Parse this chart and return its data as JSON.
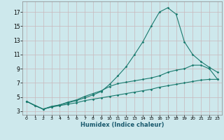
{
  "xlabel": "Humidex (Indice chaleur)",
  "bg_color": "#cde8ec",
  "grid_color_major": "#b8d4d8",
  "grid_color_minor": "#d4e8ec",
  "line_color": "#1a7a6e",
  "xlim": [
    -0.5,
    23.5
  ],
  "ylim": [
    2.5,
    18.5
  ],
  "yticks": [
    3,
    5,
    7,
    9,
    11,
    13,
    15,
    17
  ],
  "xticks": [
    0,
    1,
    2,
    3,
    4,
    5,
    6,
    7,
    8,
    9,
    10,
    11,
    12,
    13,
    14,
    15,
    16,
    17,
    18,
    19,
    20,
    21,
    22,
    23
  ],
  "line1_x": [
    0,
    1,
    2,
    3,
    4,
    5,
    6,
    7,
    8,
    9,
    10,
    11,
    12,
    13,
    14,
    15,
    16,
    17,
    18,
    19,
    20,
    21,
    22,
    23
  ],
  "line1_y": [
    4.4,
    3.8,
    3.3,
    3.6,
    3.9,
    4.2,
    4.5,
    4.9,
    5.3,
    5.8,
    6.8,
    8.0,
    9.3,
    11.0,
    12.8,
    15.0,
    17.0,
    17.6,
    16.7,
    12.8,
    11.0,
    10.0,
    9.2,
    8.5
  ],
  "line2_x": [
    0,
    2,
    3,
    4,
    5,
    6,
    7,
    8,
    9,
    10,
    11,
    12,
    13,
    14,
    15,
    16,
    17,
    18,
    19,
    20,
    21,
    22,
    23
  ],
  "line2_y": [
    4.4,
    3.3,
    3.7,
    3.9,
    4.3,
    4.6,
    5.1,
    5.5,
    5.9,
    6.5,
    6.9,
    7.1,
    7.3,
    7.5,
    7.7,
    8.0,
    8.5,
    8.8,
    9.0,
    9.5,
    9.5,
    9.0,
    7.5
  ],
  "line3_x": [
    0,
    1,
    2,
    3,
    4,
    5,
    6,
    7,
    8,
    9,
    10,
    11,
    12,
    13,
    14,
    15,
    16,
    17,
    18,
    19,
    20,
    21,
    22,
    23
  ],
  "line3_y": [
    4.4,
    3.8,
    3.3,
    3.6,
    3.8,
    4.0,
    4.2,
    4.5,
    4.7,
    4.9,
    5.1,
    5.3,
    5.5,
    5.7,
    5.9,
    6.1,
    6.4,
    6.6,
    6.8,
    7.0,
    7.2,
    7.4,
    7.5,
    7.5
  ]
}
